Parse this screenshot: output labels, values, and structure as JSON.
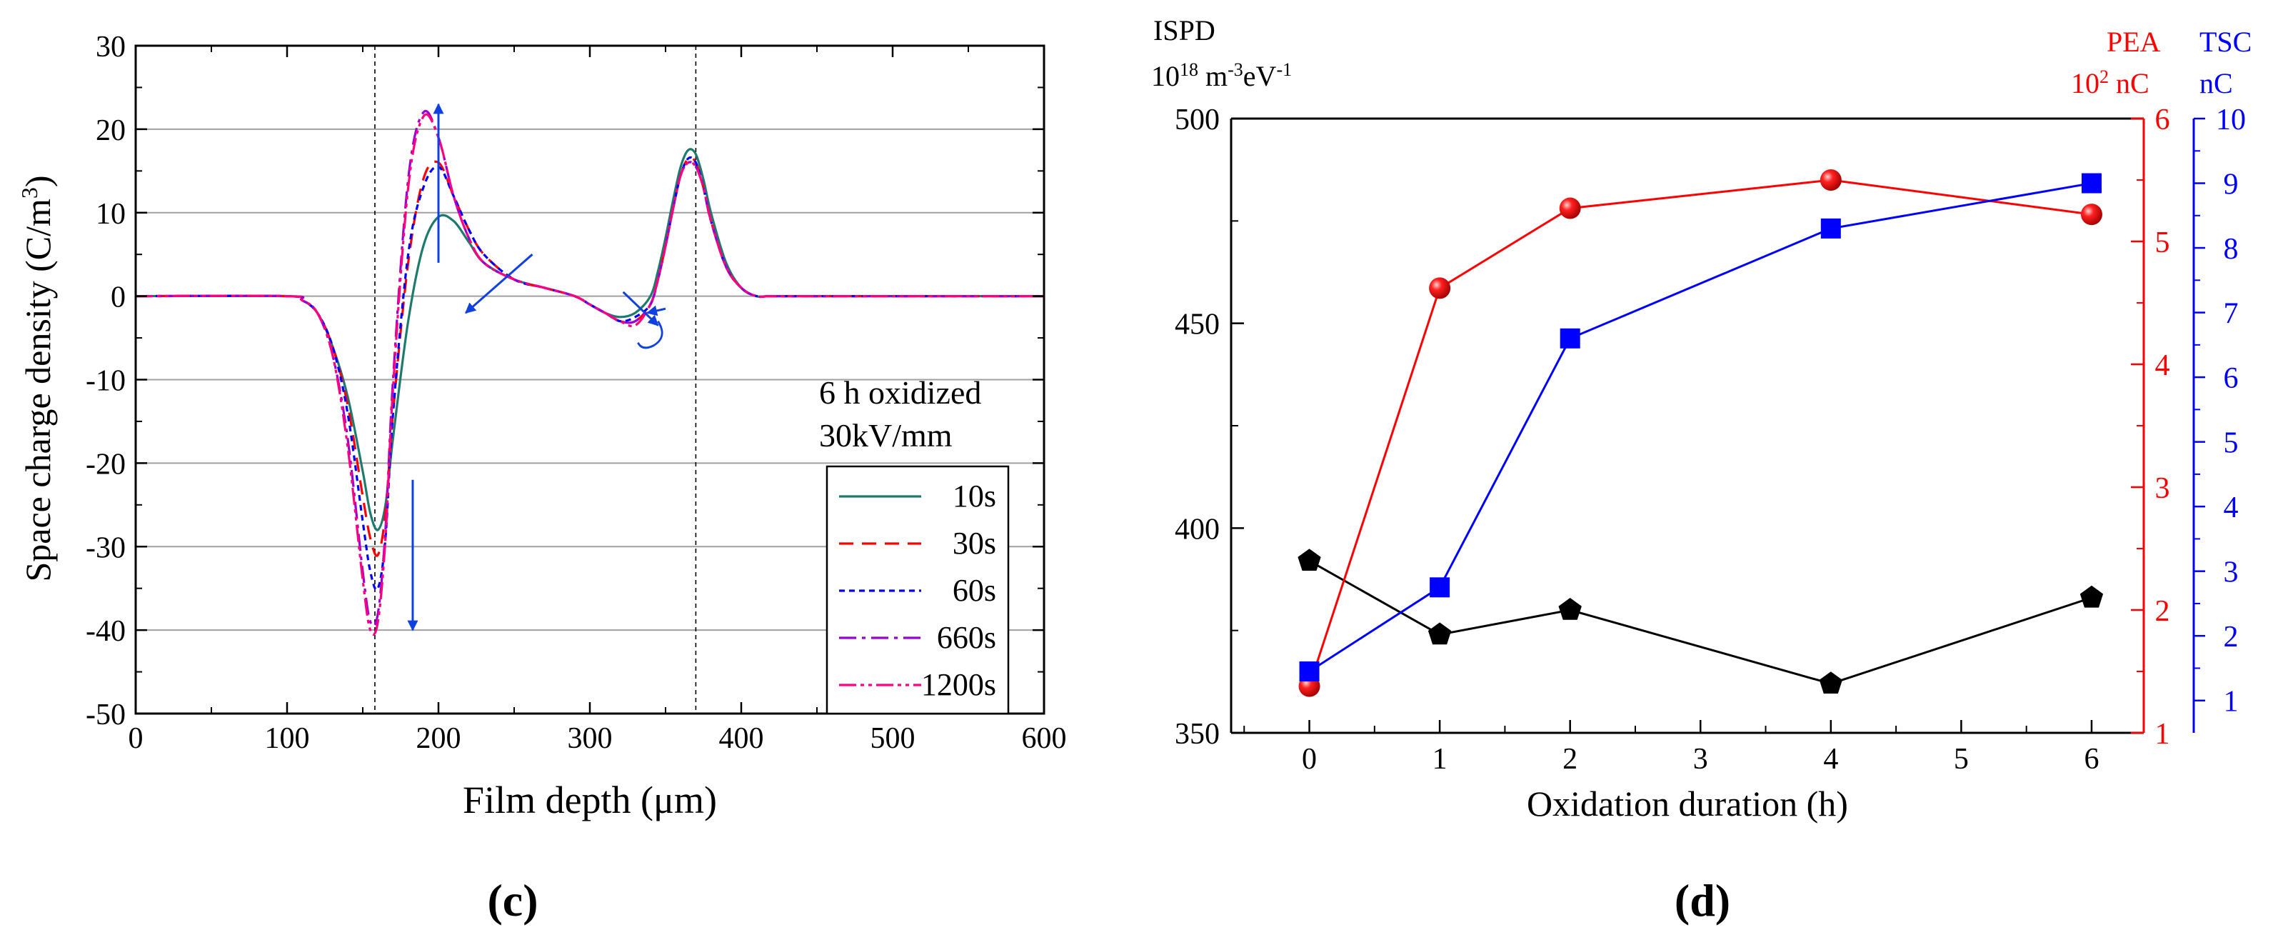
{
  "panel_c": {
    "panel_label": "(c)",
    "annotation_line1": "6 h oxidized",
    "annotation_line2": "30kV/mm"
  },
  "panel_d": {
    "panel_label": "(d)",
    "left_axis_title_line1": "ISPD",
    "left_axis_unit_line2": "10^18 m^-3 eV^-1",
    "red_axis_title": "PEA",
    "red_axis_unit": "10^2 nC",
    "blue_axis_title": "TSC",
    "blue_axis_unit": "nC"
  },
  "colors": {
    "teal": "#1f7a6e",
    "red": "#ff0000",
    "blue": "#0000ff",
    "violet": "#9a00d0",
    "magenta": "#ff0080",
    "arrow": "#1040e0",
    "black": "#000000",
    "grid": "#a0a0a0"
  },
  "chart_data": [
    {
      "id": "c",
      "type": "line",
      "title": "",
      "xlabel": "Film depth (μm)",
      "ylabel": "Space charge density (C/m3)",
      "xlim": [
        0,
        600
      ],
      "ylim": [
        -50,
        30
      ],
      "xticks": [
        0,
        100,
        200,
        300,
        400,
        500,
        600
      ],
      "yticks": [
        -50,
        -40,
        -30,
        -20,
        -10,
        0,
        10,
        20,
        30
      ],
      "grid": true,
      "legend_position": "bottom-right",
      "vlines": [
        158,
        370
      ],
      "series": [
        {
          "name": "10s",
          "color": "#1f7a6e",
          "dash": "solid",
          "x": [
            0,
            100,
            110,
            120,
            130,
            140,
            150,
            155,
            160,
            165,
            170,
            180,
            190,
            200,
            210,
            220,
            230,
            250,
            270,
            290,
            300,
            310,
            320,
            330,
            340,
            345,
            350,
            355,
            360,
            365,
            370,
            375,
            380,
            390,
            400,
            410,
            420,
            450,
            600
          ],
          "y": [
            0,
            0,
            -0.5,
            -2,
            -6,
            -12,
            -21,
            -26,
            -28,
            -25,
            -17,
            -3,
            6,
            9.5,
            9,
            6.5,
            4,
            2,
            1,
            0,
            -1,
            -2,
            -2.5,
            -2,
            0,
            3,
            7,
            11.5,
            15.5,
            17.5,
            17,
            14,
            10,
            4,
            1,
            0,
            0,
            0,
            0
          ]
        },
        {
          "name": "30s",
          "color": "#ff0000",
          "dash": "20,12",
          "x": [
            0,
            100,
            110,
            120,
            130,
            140,
            150,
            155,
            160,
            165,
            170,
            180,
            190,
            200,
            210,
            220,
            230,
            250,
            270,
            290,
            300,
            310,
            320,
            330,
            340,
            345,
            350,
            355,
            360,
            365,
            370,
            375,
            380,
            390,
            400,
            410,
            420,
            450,
            600
          ],
          "y": [
            0,
            0,
            -0.5,
            -2,
            -6,
            -13,
            -24,
            -29,
            -31,
            -26,
            -14,
            4,
            14,
            16,
            12,
            8,
            5,
            2,
            1,
            0,
            -1,
            -2,
            -3,
            -3,
            -1,
            2,
            6,
            10.5,
            14.5,
            16.5,
            16,
            13,
            9,
            3.5,
            1,
            0,
            0,
            0,
            0
          ]
        },
        {
          "name": "60s",
          "color": "#0000ff",
          "dash": "8,6",
          "x": [
            0,
            100,
            110,
            120,
            130,
            140,
            150,
            155,
            160,
            165,
            170,
            180,
            190,
            200,
            210,
            220,
            230,
            250,
            270,
            290,
            300,
            310,
            320,
            330,
            340,
            345,
            350,
            355,
            360,
            365,
            370,
            375,
            380,
            390,
            400,
            410,
            420,
            450,
            600
          ],
          "y": [
            0,
            0,
            -0.5,
            -2,
            -6,
            -14,
            -27,
            -33,
            -35,
            -29,
            -14,
            5,
            13,
            15.5,
            12,
            8,
            5,
            2,
            1,
            0,
            -1,
            -2,
            -3,
            -2.5,
            -1,
            2,
            6,
            10.5,
            14.5,
            16.5,
            16,
            13,
            9,
            3.5,
            1,
            0,
            0,
            0,
            0
          ]
        },
        {
          "name": "660s",
          "color": "#9a00d0",
          "dash": "24,8,5,8",
          "x": [
            0,
            100,
            110,
            120,
            130,
            140,
            150,
            155,
            160,
            165,
            170,
            180,
            190,
            200,
            210,
            220,
            230,
            250,
            270,
            290,
            300,
            310,
            320,
            330,
            340,
            345,
            350,
            355,
            360,
            365,
            370,
            375,
            380,
            390,
            400,
            410,
            420,
            450,
            600
          ],
          "y": [
            0,
            0,
            -0.5,
            -2,
            -7,
            -17,
            -33,
            -39,
            -38,
            -28,
            -10,
            14,
            22,
            19,
            12,
            7,
            4,
            2,
            1,
            0,
            -1,
            -2,
            -3,
            -3,
            -1,
            2,
            6,
            10.5,
            14.5,
            16,
            15.5,
            13,
            9,
            3.5,
            1,
            0,
            0,
            0,
            0
          ]
        },
        {
          "name": "1200s",
          "color": "#ff0080",
          "dash": "24,6,5,6,5,6",
          "x": [
            0,
            100,
            110,
            120,
            130,
            140,
            150,
            155,
            160,
            165,
            170,
            180,
            190,
            200,
            210,
            220,
            230,
            250,
            270,
            290,
            300,
            310,
            320,
            330,
            340,
            345,
            350,
            355,
            360,
            365,
            370,
            375,
            380,
            390,
            400,
            410,
            420,
            450,
            600
          ],
          "y": [
            0,
            0,
            -0.5,
            -2,
            -7,
            -18,
            -34,
            -40,
            -39,
            -29,
            -11,
            13,
            21.5,
            19,
            12,
            7,
            4,
            2,
            1,
            0,
            -1,
            -2,
            -3,
            -3.5,
            -1,
            2,
            6,
            10.5,
            14.5,
            16,
            15.5,
            13,
            9,
            3.5,
            1,
            0,
            0,
            0,
            0
          ]
        }
      ],
      "arrows": [
        {
          "from": [
            200,
            4
          ],
          "to": [
            200,
            23
          ]
        },
        {
          "from": [
            183,
            -22
          ],
          "to": [
            183,
            -40
          ]
        },
        {
          "from": [
            262,
            5
          ],
          "to": [
            218,
            -2
          ]
        },
        {
          "from": [
            322,
            0.5
          ],
          "to": [
            345,
            -3.5
          ]
        },
        {
          "from": [
            350,
            -1.5
          ],
          "to": [
            338,
            -2
          ]
        }
      ]
    },
    {
      "id": "d",
      "type": "line",
      "title": "",
      "xlabel": "Oxidation duration (h)",
      "xlim": [
        -0.6,
        6.4
      ],
      "xticks": [
        0,
        1,
        2,
        3,
        4,
        5,
        6
      ],
      "grid": false,
      "axes": {
        "left": {
          "label": "ISPD",
          "range": [
            350,
            500
          ],
          "ticks": [
            350,
            400,
            450,
            500
          ]
        },
        "right_red": {
          "label": "PEA",
          "range": [
            1,
            6
          ],
          "ticks": [
            1,
            2,
            3,
            4,
            5,
            6
          ]
        },
        "right_blue": {
          "label": "TSC",
          "range": [
            0.5,
            10
          ],
          "ticks": [
            1,
            2,
            3,
            4,
            5,
            6,
            7,
            8,
            9,
            10
          ]
        }
      },
      "series": [
        {
          "name": "ISPD",
          "axis": "left",
          "color": "#000000",
          "marker": "pentagon",
          "x": [
            0,
            1,
            2,
            4,
            6
          ],
          "values": [
            392,
            374,
            380,
            362,
            383
          ]
        },
        {
          "name": "PEA",
          "axis": "right_red",
          "color": "#ff0000",
          "marker": "sphere",
          "x": [
            0,
            1,
            2,
            4,
            6
          ],
          "values": [
            1.38,
            4.62,
            5.27,
            5.5,
            5.22
          ]
        },
        {
          "name": "TSC",
          "axis": "right_blue",
          "color": "#0000ff",
          "marker": "square",
          "x": [
            0,
            1,
            2,
            4,
            6
          ],
          "values": [
            1.45,
            2.75,
            6.6,
            8.3,
            9.0
          ]
        }
      ]
    }
  ]
}
